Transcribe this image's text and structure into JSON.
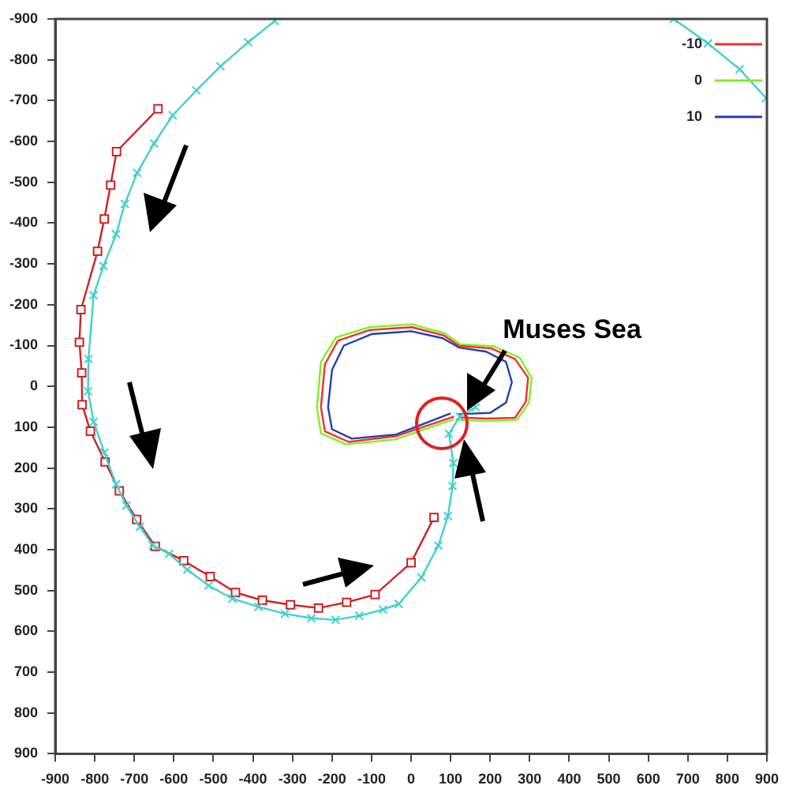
{
  "chart_data": {
    "type": "line",
    "xlim": [
      -900,
      900
    ],
    "xticks": [
      -900,
      -800,
      -700,
      -600,
      -500,
      -400,
      -300,
      -200,
      -100,
      0,
      100,
      200,
      300,
      400,
      500,
      600,
      700,
      800,
      900
    ],
    "ylim": [
      900,
      -900
    ],
    "yticks": [
      -900,
      -800,
      -700,
      -600,
      -500,
      -400,
      -300,
      -200,
      -100,
      0,
      100,
      200,
      300,
      400,
      500,
      600,
      700,
      800,
      900
    ],
    "grid": false,
    "legend": "top right",
    "line_style": "solid",
    "annotations": [
      {
        "text": "Muses Sea",
        "x": 140,
        "y": 60
      }
    ],
    "series": [
      {
        "type": "line",
        "marker": "cross",
        "color": "#40d0d0",
        "x": [
          -345,
          -412,
          -482,
          -543,
          -603,
          -650,
          -693,
          -724,
          -746,
          -778,
          -803,
          -816,
          -817,
          -803,
          -776,
          -746,
          -720,
          -686,
          -653,
          -612,
          -566,
          -512,
          -452,
          -386,
          -319,
          -252,
          -191,
          -131,
          -71,
          -31,
          26,
          69,
          93,
          105,
          107,
          96,
          123,
          163
        ],
        "values": [
          -895,
          -843,
          -784,
          -725,
          -664,
          -595,
          -523,
          -447,
          -373,
          -295,
          -223,
          -67,
          12,
          87,
          162,
          240,
          292,
          344,
          390,
          410,
          449,
          488,
          520,
          540,
          557,
          568,
          572,
          562,
          547,
          533,
          468,
          390,
          318,
          244,
          188,
          116,
          74,
          51
        ]
      },
      {
        "type": "line",
        "marker": "cross",
        "color": "#40d0d0",
        "x": [
          664,
          751,
          831,
          898
        ],
        "values": [
          -900,
          -840,
          -777,
          -706
        ]
      },
      {
        "type": "line",
        "marker": "square",
        "color": "#d02020",
        "x": [
          -640,
          -745,
          -760,
          -776,
          -793,
          -835,
          -839,
          -833,
          -832,
          -811,
          -774,
          -738,
          -694,
          -647,
          -575,
          -508,
          -444,
          -376,
          -305,
          -234,
          -163,
          -91,
          0,
          58
        ],
        "values": [
          -680,
          -575,
          -493,
          -410,
          -331,
          -188,
          -108,
          -33,
          45,
          110,
          185,
          256,
          326,
          392,
          427,
          466,
          505,
          524,
          535,
          543,
          529,
          510,
          432,
          321
        ]
      },
      {
        "type": "line",
        "marker": "none",
        "name": "-10",
        "color": "#f03030",
        "x": [
          109,
          -38,
          -158,
          -218,
          -228,
          -218,
          -185,
          -105,
          2,
          82,
          122,
          203,
          263,
          296,
          290,
          263,
          190,
          120
        ],
        "values": [
          74,
          122,
          136,
          110,
          51,
          -54,
          -112,
          -138,
          -145,
          -125,
          -99,
          -93,
          -67,
          -21,
          38,
          77,
          79,
          76
        ]
      },
      {
        "type": "line",
        "marker": "none",
        "name": "0",
        "color": "#80f020",
        "x": [
          109,
          -40,
          -165,
          -228,
          -238,
          -228,
          -190,
          -105,
          2,
          85,
          125,
          210,
          275,
          305,
          298,
          268,
          190,
          120
        ],
        "values": [
          80,
          130,
          142,
          115,
          51,
          -60,
          -120,
          -145,
          -152,
          -130,
          -103,
          -98,
          -70,
          -20,
          40,
          82,
          85,
          82
        ]
      },
      {
        "type": "line",
        "marker": "none",
        "name": "10",
        "color": "#2040b0",
        "x": [
          100,
          -38,
          -150,
          -200,
          -210,
          -200,
          -170,
          -100,
          0,
          80,
          122,
          190,
          240,
          255,
          240,
          200,
          120
        ],
        "values": [
          66,
          118,
          128,
          105,
          51,
          -40,
          -100,
          -128,
          -135,
          -118,
          -95,
          -85,
          -60,
          -10,
          40,
          65,
          68
        ]
      }
    ]
  }
}
